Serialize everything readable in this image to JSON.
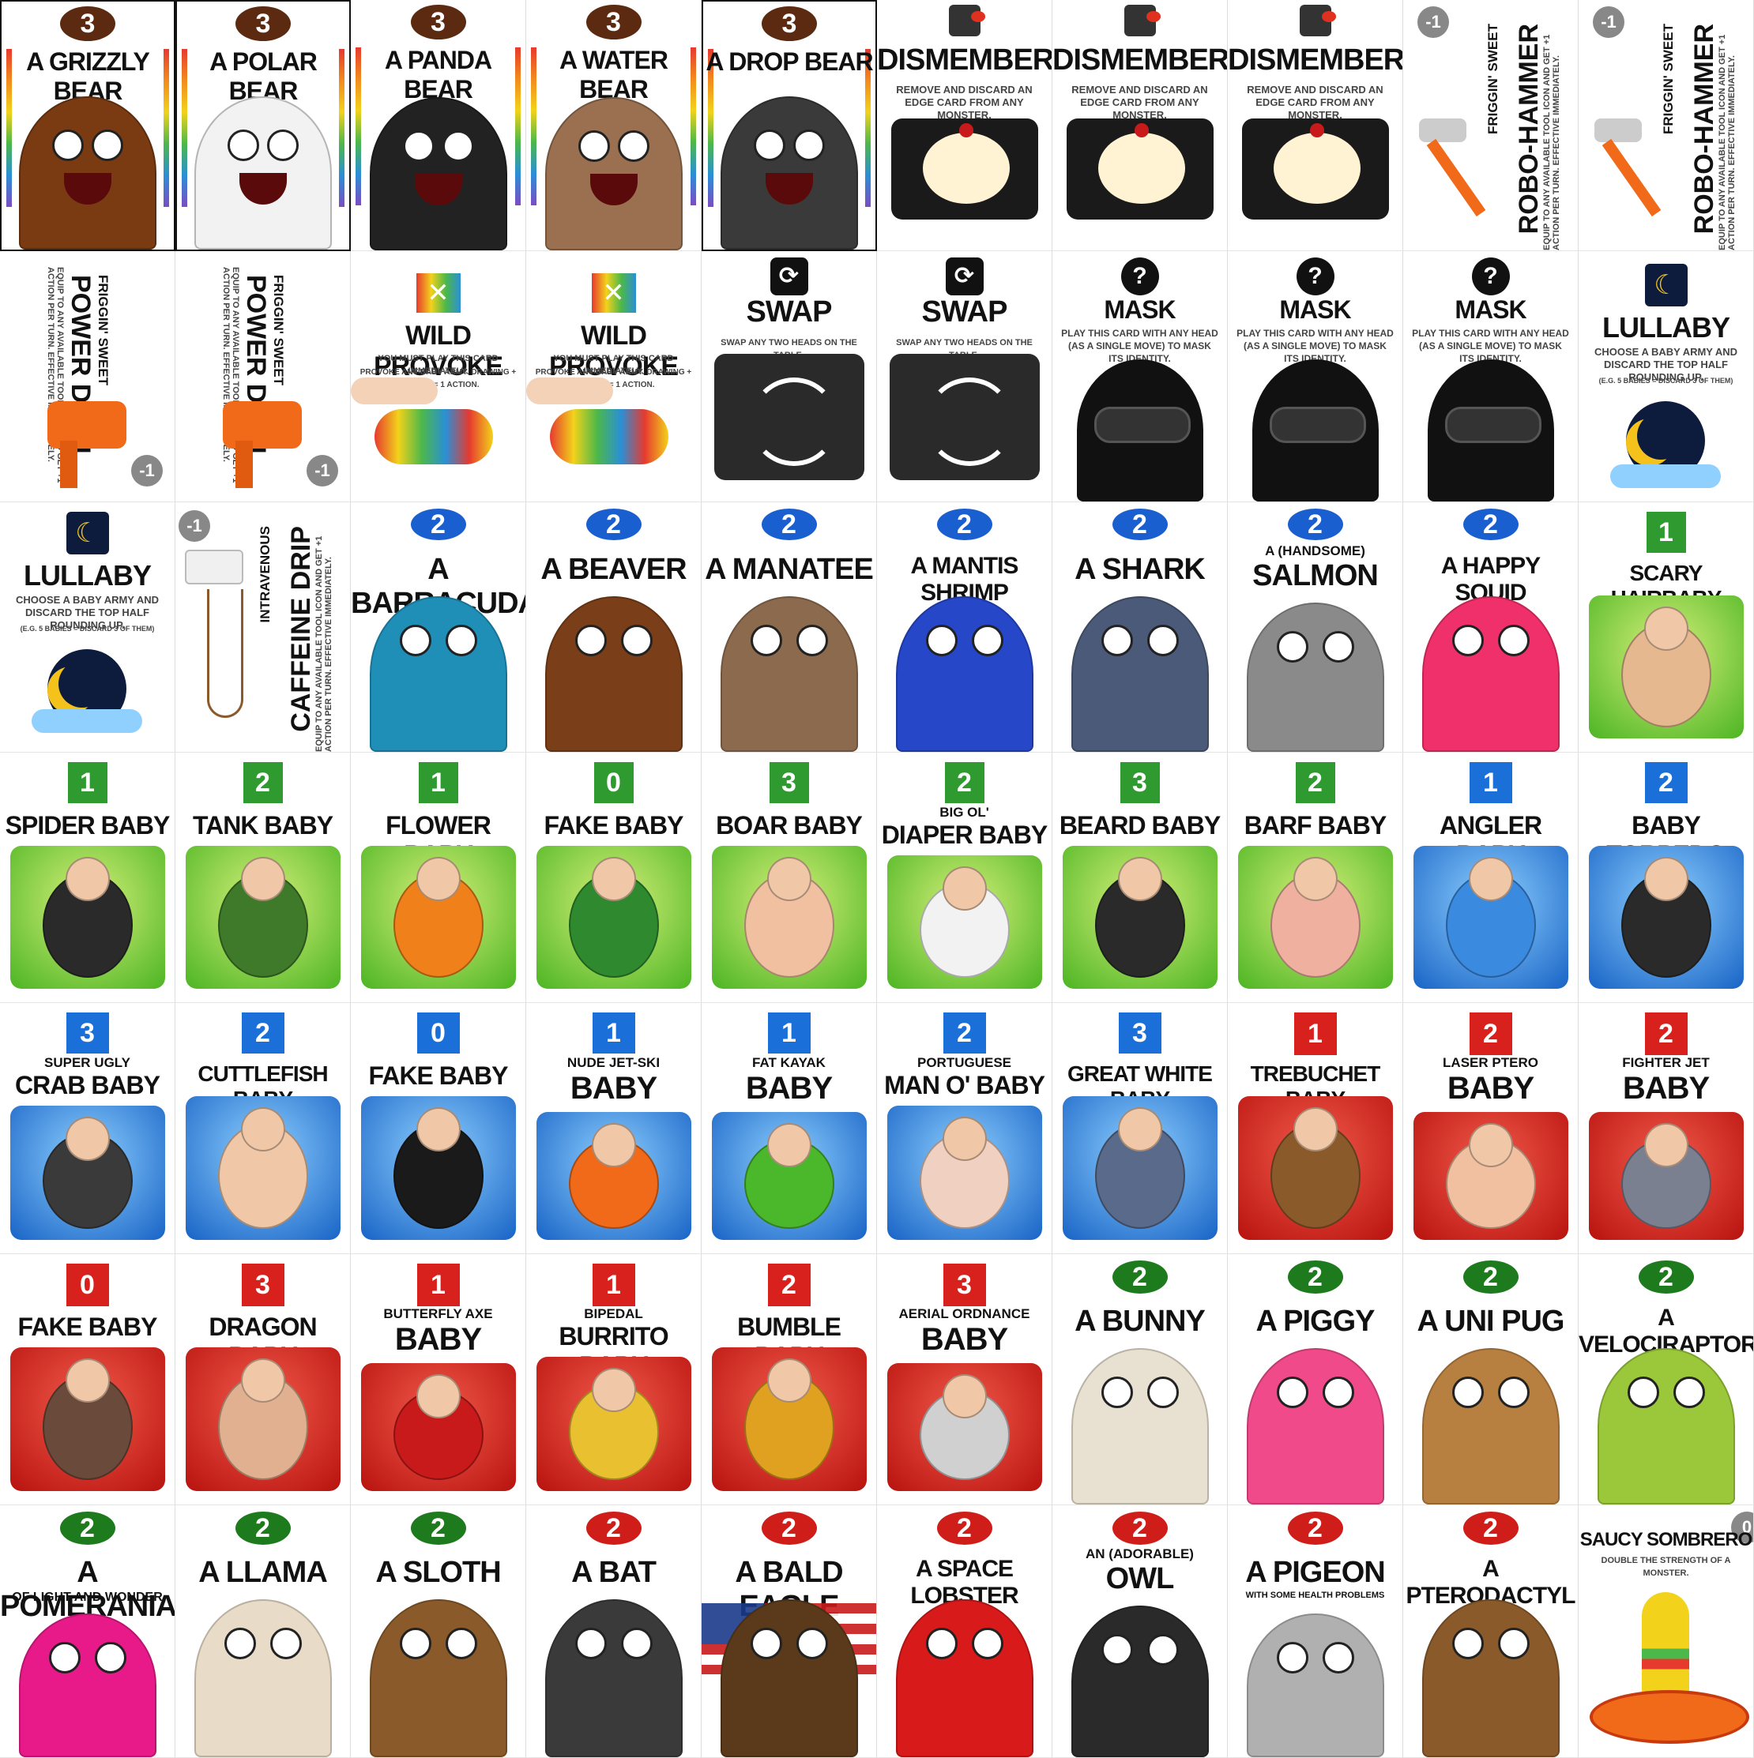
{
  "rows": [
    {
      "cards": [
        {
          "title": "A GRIZZLY BEAR",
          "badge": "3",
          "kind": "monster3",
          "color": "#7a3b12"
        },
        {
          "title": "A POLAR BEAR",
          "badge": "3",
          "kind": "monster3",
          "color": "#f2f2f2"
        },
        {
          "title": "A PANDA BEAR",
          "badge": "3",
          "kind": "monster3",
          "color": "#222222"
        },
        {
          "title": "A WATER BEAR",
          "badge": "3",
          "kind": "monster3",
          "color": "#9a7050"
        },
        {
          "title": "A DROP BEAR",
          "badge": "3",
          "kind": "monster3",
          "color": "#3a3a3a"
        },
        {
          "title": "DISMEMBER",
          "text": "REMOVE AND DISCARD AN EDGE CARD FROM ANY MONSTER.",
          "kind": "dismember"
        },
        {
          "title": "DISMEMBER",
          "text": "REMOVE AND DISCARD AN EDGE CARD FROM ANY MONSTER.",
          "kind": "dismember"
        },
        {
          "title": "DISMEMBER",
          "text": "REMOVE AND DISCARD AN EDGE CARD FROM ANY MONSTER.",
          "kind": "dismember"
        },
        {
          "pre": "FRIGGIN' SWEET",
          "title": "ROBO-HAMMER",
          "text": "EQUIP TO ANY AVAILABLE TOOL ICON AND GET +1 ACTION PER TURN. EFFECTIVE IMMEDIATELY.",
          "badge": "-1",
          "kind": "tool"
        },
        {
          "pre": "FRIGGIN' SWEET",
          "title": "ROBO-HAMMER",
          "text": "EQUIP TO ANY AVAILABLE TOOL ICON AND GET +1 ACTION PER TURN. EFFECTIVE IMMEDIATELY.",
          "badge": "-1",
          "kind": "tool"
        }
      ]
    },
    {
      "cards": [
        {
          "pre": "FRIGGIN' SWEET",
          "title": "POWER DRILL",
          "text": "EQUIP TO ANY AVAILABLE TOOL ICON AND GET +1 ACTION PER TURN. EFFECTIVE IMMEDIATELY.",
          "badge": "-1",
          "kind": "drill"
        },
        {
          "pre": "FRIGGIN' SWEET",
          "title": "POWER DRILL",
          "text": "EQUIP TO ANY AVAILABLE TOOL ICON AND GET +1 ACTION PER TURN. EFFECTIVE IMMEDIATELY.",
          "badge": "-1",
          "kind": "drill"
        },
        {
          "title": "WILD PROVOKE",
          "text": "YOU MUST PLAY THIS CARD IMMEDIATELY.",
          "text2": "PROVOKE ANY BABY ARMY. DRAWING + PLAYING = 1 ACTION.",
          "kind": "provoke"
        },
        {
          "title": "WILD PROVOKE",
          "text": "YOU MUST PLAY THIS CARD IMMEDIATELY.",
          "text2": "PROVOKE ANY BABY ARMY. DRAWING + PLAYING = 1 ACTION.",
          "kind": "provoke"
        },
        {
          "title": "SWAP",
          "text": "SWAP ANY TWO HEADS ON THE TABLE.",
          "kind": "swap"
        },
        {
          "title": "SWAP",
          "text": "SWAP ANY TWO HEADS ON THE TABLE.",
          "kind": "swap"
        },
        {
          "title": "MASK",
          "badge": "?",
          "text": "PLAY THIS CARD WITH ANY HEAD (AS A SINGLE MOVE) TO MASK ITS IDENTITY.",
          "kind": "mask"
        },
        {
          "title": "MASK",
          "badge": "?",
          "text": "PLAY THIS CARD WITH ANY HEAD (AS A SINGLE MOVE) TO MASK ITS IDENTITY.",
          "kind": "mask"
        },
        {
          "title": "MASK",
          "badge": "?",
          "text": "PLAY THIS CARD WITH ANY HEAD (AS A SINGLE MOVE) TO MASK ITS IDENTITY.",
          "kind": "mask"
        },
        {
          "title": "LULLABY",
          "text": "CHOOSE A BABY ARMY AND DISCARD THE TOP HALF ROUNDING UP.",
          "text2": "(E.G. 5 BABIES = DISCARD 3 OF THEM)",
          "kind": "lullaby"
        }
      ]
    },
    {
      "cards": [
        {
          "title": "LULLABY",
          "text": "CHOOSE A BABY ARMY AND DISCARD THE TOP HALF ROUNDING UP.",
          "text2": "(E.G. 5 BABIES = DISCARD 3 OF THEM)",
          "kind": "lullaby"
        },
        {
          "pre": "INTRAVENOUS",
          "title": "CAFFEINE DRIP",
          "text": "EQUIP TO ANY AVAILABLE TOOL ICON AND GET +1 ACTION PER TURN. EFFECTIVE IMMEDIATELY.",
          "badge": "-1",
          "kind": "drip"
        },
        {
          "title": "A BARRACUDA",
          "badge": "2",
          "kind": "sea",
          "color": "#1f8fb8"
        },
        {
          "title": "A BEAVER",
          "badge": "2",
          "kind": "sea",
          "color": "#7a3e18"
        },
        {
          "title": "A MANATEE",
          "badge": "2",
          "kind": "sea",
          "color": "#8c6a4e"
        },
        {
          "title": "A MANTIS SHRIMP",
          "badge": "2",
          "kind": "sea",
          "color": "#2547c8"
        },
        {
          "title": "A SHARK",
          "badge": "2",
          "kind": "sea",
          "color": "#4a5a78"
        },
        {
          "pre": "A (HANDSOME)",
          "title": "SALMON",
          "badge": "2",
          "kind": "sea",
          "color": "#8a8a8a"
        },
        {
          "title": "A HAPPY SQUID",
          "badge": "2",
          "kind": "sea",
          "color": "#f0306a"
        },
        {
          "title": "SCARY HAIRBABY",
          "badge": "1",
          "kind": "babyg",
          "color": "#e6b890"
        }
      ]
    },
    {
      "cards": [
        {
          "title": "SPIDER BABY",
          "badge": "1",
          "kind": "babyg",
          "color": "#2a2a2a"
        },
        {
          "title": "TANK BABY",
          "badge": "2",
          "kind": "babyg",
          "color": "#3e7a2a"
        },
        {
          "title": "FLOWER BABY",
          "badge": "1",
          "kind": "babyg",
          "color": "#f0801a"
        },
        {
          "title": "FAKE BABY",
          "badge": "0",
          "kind": "babyg",
          "color": "#2f8a2f"
        },
        {
          "title": "BOAR BABY",
          "badge": "3",
          "kind": "babyg",
          "color": "#f0c0a0"
        },
        {
          "pre": "BIG OL'",
          "title": "DIAPER BABY",
          "badge": "2",
          "kind": "babyg",
          "color": "#f2f2f2"
        },
        {
          "title": "BEARD BABY",
          "badge": "3",
          "kind": "babyg",
          "color": "#2a2a2a"
        },
        {
          "title": "BARF BABY",
          "badge": "2",
          "kind": "babyg",
          "color": "#f0b0a0"
        },
        {
          "title": "ANGLER BABY",
          "badge": "1",
          "kind": "babyb",
          "color": "#3a8ae0"
        },
        {
          "title": "BABY TORPEDO",
          "badge": "2",
          "kind": "babyb",
          "color": "#2a2a2a"
        }
      ]
    },
    {
      "cards": [
        {
          "pre": "SUPER UGLY",
          "title": "CRAB BABY",
          "badge": "3",
          "kind": "babyb",
          "color": "#3a3a3a"
        },
        {
          "title": "CUTTLEFISH BABY",
          "badge": "2",
          "kind": "babyb",
          "color": "#f0c8a8"
        },
        {
          "title": "FAKE BABY",
          "badge": "0",
          "kind": "babyb",
          "color": "#1a1a1a"
        },
        {
          "pre": "NUDE JET-SKI",
          "title": "BABY",
          "badge": "1",
          "kind": "babyb",
          "color": "#f06a1a"
        },
        {
          "pre": "FAT KAYAK",
          "title": "BABY",
          "badge": "1",
          "kind": "babyb",
          "color": "#4ab82a"
        },
        {
          "pre": "PORTUGUESE",
          "title": "MAN O' BABY",
          "badge": "2",
          "kind": "babyb",
          "color": "#f0d0c0"
        },
        {
          "title": "GREAT WHITE BABY",
          "badge": "3",
          "kind": "babyb",
          "color": "#5a6a8a"
        },
        {
          "title": "TREBUCHET BABY",
          "badge": "1",
          "kind": "babyr",
          "color": "#8a5a2a"
        },
        {
          "pre": "LASER PTERO",
          "title": "BABY",
          "badge": "2",
          "kind": "babyr",
          "color": "#f0c0a0"
        },
        {
          "pre": "FIGHTER JET",
          "title": "BABY",
          "badge": "2",
          "kind": "babyr",
          "color": "#7a8090"
        }
      ]
    },
    {
      "cards": [
        {
          "title": "FAKE BABY",
          "badge": "0",
          "kind": "babyr",
          "color": "#6a4a3a"
        },
        {
          "title": "DRAGON BABY",
          "badge": "3",
          "kind": "babyr",
          "color": "#e0b090"
        },
        {
          "pre": "BUTTERFLY AXE",
          "title": "BABY",
          "badge": "1",
          "kind": "babyr",
          "color": "#c81a1a"
        },
        {
          "pre": "BIPEDAL",
          "title": "BURRITO BABY",
          "badge": "1",
          "kind": "babyr",
          "color": "#e8c030"
        },
        {
          "title": "BUMBLE BABY",
          "badge": "2",
          "kind": "babyr",
          "color": "#e0a020"
        },
        {
          "pre": "AERIAL ORDNANCE",
          "title": "BABY",
          "badge": "3",
          "kind": "babyr",
          "color": "#d0d0d0"
        },
        {
          "title": "A BUNNY",
          "badge": "2",
          "kind": "land",
          "color": "#e8e0d0"
        },
        {
          "title": "A PIGGY",
          "badge": "2",
          "kind": "land",
          "color": "#f04a8a"
        },
        {
          "title": "A UNI PUG",
          "badge": "2",
          "kind": "land",
          "color": "#b88040"
        },
        {
          "title": "A VELOCIRAPTOR",
          "badge": "2",
          "kind": "land",
          "color": "#9ac83a"
        }
      ]
    },
    {
      "cards": [
        {
          "title": "A POMERANIAN",
          "sub": "OF LIGHT AND WONDER",
          "badge": "2",
          "kind": "land",
          "color": "#e81a8a"
        },
        {
          "title": "A LLAMA",
          "badge": "2",
          "kind": "land",
          "color": "#e8dcc8"
        },
        {
          "title": "A SLOTH",
          "badge": "2",
          "kind": "land",
          "color": "#8a5a2a"
        },
        {
          "title": "A BAT",
          "badge": "2",
          "kind": "sky",
          "color": "#3a3a3a"
        },
        {
          "title": "A BALD EAGLE",
          "badge": "2",
          "kind": "sky",
          "color": "#5a3a1a"
        },
        {
          "title": "A SPACE LOBSTER",
          "badge": "2",
          "kind": "sky",
          "color": "#d81a1a"
        },
        {
          "pre": "AN (ADORABLE)",
          "title": "OWL",
          "badge": "2",
          "kind": "sky",
          "color": "#2a2a2a"
        },
        {
          "title": "A PIGEON",
          "sub": "WITH SOME HEALTH PROBLEMS",
          "badge": "2",
          "kind": "sky",
          "color": "#b0b0b0"
        },
        {
          "title": "A PTERODACTYL",
          "badge": "2",
          "kind": "sky",
          "color": "#8a5a2a"
        },
        {
          "title": "SAUCY SOMBRERO",
          "text": "DOUBLE THE STRENGTH OF A MONSTER.",
          "badge": "0",
          "kind": "sombrero"
        }
      ]
    }
  ]
}
